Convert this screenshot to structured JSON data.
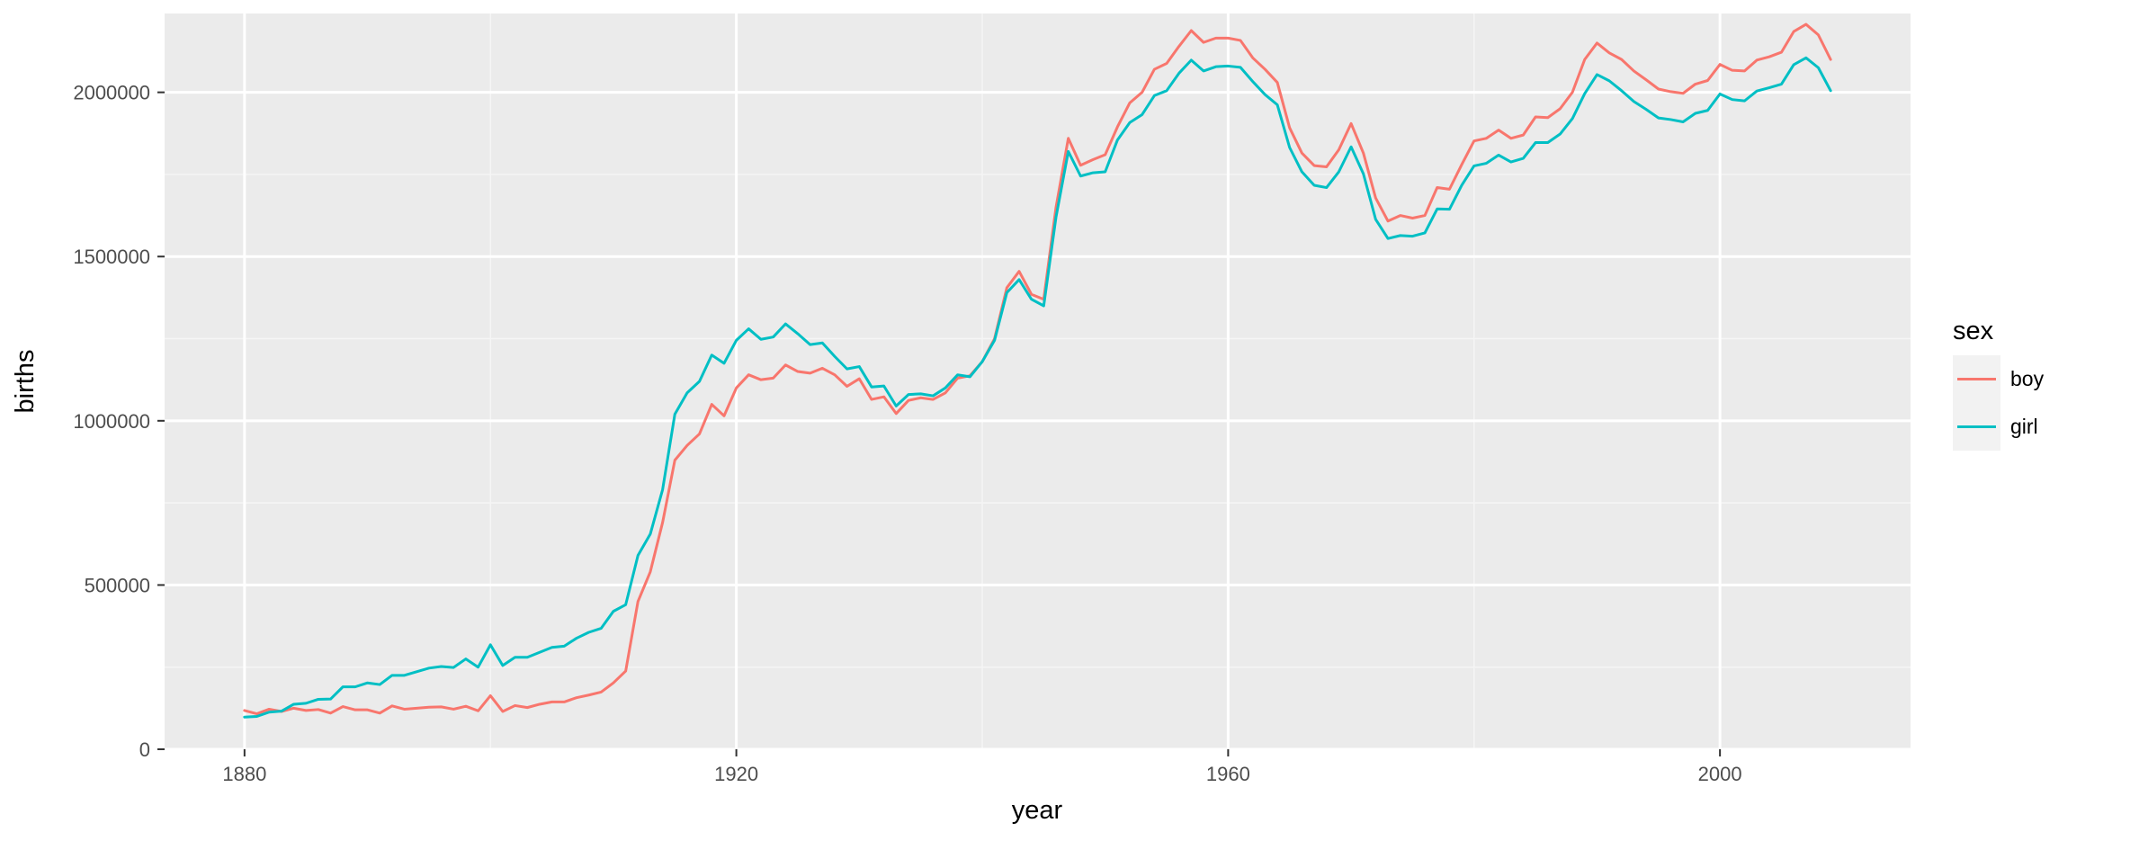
{
  "chart_data": {
    "type": "line",
    "title": "",
    "xlabel": "year",
    "ylabel": "births",
    "xlim": [
      1873.5,
      2015.5
    ],
    "ylim": [
      0,
      2240000
    ],
    "x_ticks": [
      1880,
      1920,
      1960,
      2000
    ],
    "x_tick_labels": [
      "1880",
      "1920",
      "1960",
      "2000"
    ],
    "y_ticks": [
      0,
      500000,
      1000000,
      1500000,
      2000000
    ],
    "y_tick_labels": [
      "0",
      "500000",
      "1000000",
      "1500000",
      "2000000"
    ],
    "grid": true,
    "legend": {
      "title": "sex",
      "position": "right",
      "entries": [
        "boy",
        "girl"
      ]
    },
    "series": [
      {
        "name": "boy",
        "color": "#F8766D",
        "x": [
          1880,
          1881,
          1882,
          1883,
          1884,
          1885,
          1886,
          1887,
          1888,
          1889,
          1890,
          1891,
          1892,
          1893,
          1894,
          1895,
          1896,
          1897,
          1898,
          1899,
          1900,
          1901,
          1902,
          1903,
          1904,
          1905,
          1906,
          1907,
          1908,
          1909,
          1910,
          1911,
          1912,
          1913,
          1914,
          1915,
          1916,
          1917,
          1918,
          1919,
          1920,
          1921,
          1922,
          1923,
          1924,
          1925,
          1926,
          1927,
          1928,
          1929,
          1930,
          1931,
          1932,
          1933,
          1934,
          1935,
          1936,
          1937,
          1938,
          1939,
          1940,
          1941,
          1942,
          1943,
          1944,
          1945,
          1946,
          1947,
          1948,
          1949,
          1950,
          1951,
          1952,
          1953,
          1954,
          1955,
          1956,
          1957,
          1958,
          1959,
          1960,
          1961,
          1962,
          1963,
          1964,
          1965,
          1966,
          1967,
          1968,
          1969,
          1970,
          1971,
          1972,
          1973,
          1974,
          1975,
          1976,
          1977,
          1978,
          1979,
          1980,
          1981,
          1982,
          1983,
          1984,
          1985,
          1986,
          1987,
          1988,
          1989,
          1990,
          1991,
          1992,
          1993,
          1994,
          1995,
          1996,
          1997,
          1998,
          1999,
          2000,
          2001,
          2002,
          2003,
          2004,
          2005,
          2006,
          2007,
          2008,
          2009
        ],
        "values": [
          118000,
          108000,
          122000,
          115000,
          125000,
          118000,
          121000,
          110000,
          130000,
          120000,
          120000,
          110000,
          132000,
          122000,
          125000,
          128000,
          129000,
          122000,
          131000,
          117000,
          163000,
          115000,
          133000,
          127000,
          137000,
          144000,
          144000,
          157000,
          165000,
          174000,
          202000,
          238000,
          450000,
          540000,
          690000,
          880000,
          925000,
          960000,
          1050000,
          1015000,
          1100000,
          1140000,
          1125000,
          1130000,
          1170000,
          1150000,
          1145000,
          1160000,
          1140000,
          1105000,
          1128000,
          1065000,
          1073000,
          1022000,
          1062000,
          1070000,
          1065000,
          1085000,
          1130000,
          1137000,
          1180000,
          1250000,
          1405000,
          1455000,
          1385000,
          1370000,
          1650000,
          1860000,
          1778000,
          1795000,
          1810000,
          1895000,
          1968000,
          2000000,
          2070000,
          2088000,
          2140000,
          2188000,
          2152000,
          2165000,
          2165000,
          2158000,
          2105000,
          2070000,
          2030000,
          1892000,
          1815000,
          1777000,
          1773000,
          1825000,
          1905000,
          1815000,
          1678000,
          1608000,
          1625000,
          1617000,
          1625000,
          1710000,
          1705000,
          1780000,
          1852000,
          1860000,
          1885000,
          1860000,
          1870000,
          1925000,
          1923000,
          1950000,
          2000000,
          2100000,
          2150000,
          2120000,
          2100000,
          2065000,
          2038000,
          2010000,
          2002000,
          1997000,
          2025000,
          2036000,
          2085000,
          2067000,
          2065000,
          2098000,
          2108000,
          2122000,
          2185000,
          2207000,
          2175000,
          2100000
        ]
      },
      {
        "name": "girl",
        "color": "#00BFC4",
        "x": [
          1880,
          1881,
          1882,
          1883,
          1884,
          1885,
          1886,
          1887,
          1888,
          1889,
          1890,
          1891,
          1892,
          1893,
          1894,
          1895,
          1896,
          1897,
          1898,
          1899,
          1900,
          1901,
          1902,
          1903,
          1904,
          1905,
          1906,
          1907,
          1908,
          1909,
          1910,
          1911,
          1912,
          1913,
          1914,
          1915,
          1916,
          1917,
          1918,
          1919,
          1920,
          1921,
          1922,
          1923,
          1924,
          1925,
          1926,
          1927,
          1928,
          1929,
          1930,
          1931,
          1932,
          1933,
          1934,
          1935,
          1936,
          1937,
          1938,
          1939,
          1940,
          1941,
          1942,
          1943,
          1944,
          1945,
          1946,
          1947,
          1948,
          1949,
          1950,
          1951,
          1952,
          1953,
          1954,
          1955,
          1956,
          1957,
          1958,
          1959,
          1960,
          1961,
          1962,
          1963,
          1964,
          1965,
          1966,
          1967,
          1968,
          1969,
          1970,
          1971,
          1972,
          1973,
          1974,
          1975,
          1976,
          1977,
          1978,
          1979,
          1980,
          1981,
          1982,
          1983,
          1984,
          1985,
          1986,
          1987,
          1988,
          1989,
          1990,
          1991,
          1992,
          1993,
          1994,
          1995,
          1996,
          1997,
          1998,
          1999,
          2000,
          2001,
          2002,
          2003,
          2004,
          2005,
          2006,
          2007,
          2008,
          2009
        ],
        "values": [
          98000,
          100000,
          113000,
          116000,
          137000,
          140000,
          152000,
          153000,
          190000,
          190000,
          202000,
          197000,
          225000,
          225000,
          236000,
          247000,
          252000,
          249000,
          275000,
          250000,
          318000,
          255000,
          280000,
          280000,
          295000,
          310000,
          314000,
          338000,
          356000,
          368000,
          420000,
          440000,
          590000,
          655000,
          790000,
          1020000,
          1085000,
          1120000,
          1200000,
          1175000,
          1245000,
          1280000,
          1248000,
          1255000,
          1295000,
          1265000,
          1232000,
          1237000,
          1196000,
          1158000,
          1165000,
          1103000,
          1106000,
          1045000,
          1080000,
          1082000,
          1076000,
          1100000,
          1140000,
          1134000,
          1180000,
          1245000,
          1390000,
          1430000,
          1370000,
          1350000,
          1620000,
          1820000,
          1745000,
          1755000,
          1758000,
          1855000,
          1908000,
          1932000,
          1990000,
          2005000,
          2058000,
          2098000,
          2065000,
          2078000,
          2080000,
          2076000,
          2033000,
          1993000,
          1962000,
          1832000,
          1758000,
          1717000,
          1710000,
          1758000,
          1834000,
          1752000,
          1613000,
          1555000,
          1564000,
          1562000,
          1572000,
          1645000,
          1644000,
          1717000,
          1776000,
          1784000,
          1809000,
          1788000,
          1799000,
          1847000,
          1847000,
          1873000,
          1920000,
          1996000,
          2054000,
          2035000,
          2005000,
          1972000,
          1948000,
          1922000,
          1917000,
          1910000,
          1936000,
          1945000,
          1995000,
          1978000,
          1974000,
          2004000,
          2014000,
          2025000,
          2084000,
          2105000,
          2075000,
          2005000
        ]
      }
    ]
  }
}
